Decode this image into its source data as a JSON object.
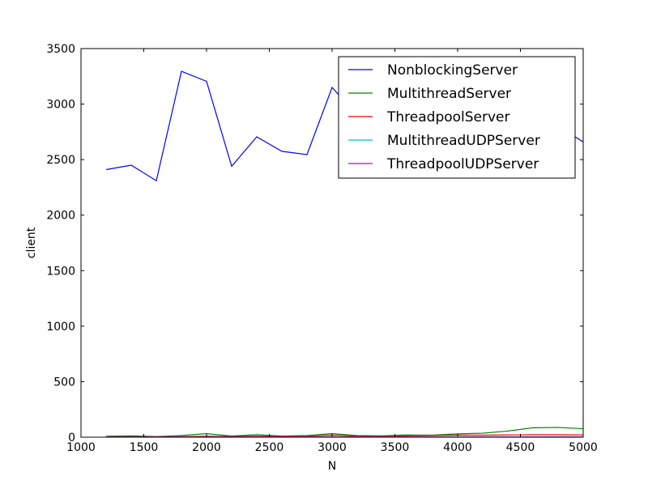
{
  "chart_data": {
    "type": "line",
    "xlabel": "N",
    "ylabel": "client",
    "xlim": [
      1000,
      5000
    ],
    "ylim": [
      0,
      3500
    ],
    "xticks": [
      1000,
      1500,
      2000,
      2500,
      3000,
      3500,
      4000,
      4500,
      5000
    ],
    "yticks": [
      0,
      500,
      1000,
      1500,
      2000,
      2500,
      3000,
      3500
    ],
    "grid": false,
    "legend_position": "top-right",
    "x": [
      1200,
      1400,
      1600,
      1800,
      2000,
      2200,
      2400,
      2600,
      2800,
      3000,
      3200,
      3400,
      3600,
      3800,
      4000,
      4200,
      4400,
      4600,
      4800,
      5000
    ],
    "series": [
      {
        "name": "NonblockingServer",
        "color": "#0000ff",
        "values": [
          2410,
          2450,
          2310,
          3295,
          3205,
          2440,
          2705,
          2575,
          2545,
          3150,
          2900,
          2850,
          2900,
          2950,
          3000,
          3050,
          3100,
          3000,
          2800,
          2660
        ]
      },
      {
        "name": "MultithreadServer",
        "color": "#008000",
        "values": [
          8,
          12,
          6,
          15,
          32,
          10,
          22,
          10,
          15,
          32,
          15,
          12,
          20,
          18,
          30,
          36,
          55,
          85,
          88,
          76
        ]
      },
      {
        "name": "ThreadpoolServer",
        "color": "#ff0000",
        "values": [
          3,
          4,
          4,
          6,
          8,
          6,
          8,
          8,
          10,
          18,
          10,
          8,
          12,
          14,
          18,
          18,
          20,
          22,
          22,
          20
        ]
      },
      {
        "name": "MultithreadUDPServer",
        "color": "#00bfbf",
        "values": [
          1,
          1,
          1,
          1,
          2,
          1,
          2,
          1,
          2,
          2,
          2,
          2,
          2,
          2,
          2,
          2,
          2,
          3,
          3,
          3
        ]
      },
      {
        "name": "ThreadpoolUDPServer",
        "color": "#bf00bf",
        "values": [
          1,
          1,
          1,
          1,
          1,
          1,
          1,
          1,
          1,
          2,
          1,
          1,
          1,
          1,
          1,
          2,
          2,
          2,
          2,
          2
        ]
      }
    ]
  }
}
